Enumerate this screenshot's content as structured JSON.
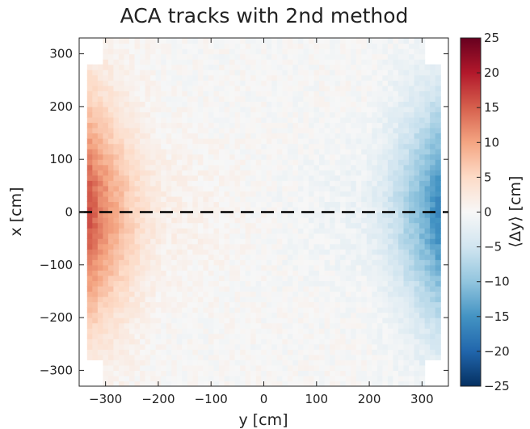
{
  "chart_data": {
    "type": "heatmap",
    "title": "ACA tracks with 2nd method",
    "xlabel": "y [cm]",
    "ylabel": "x [cm]",
    "colorbar_label": "⟨Δy⟩ [cm]",
    "xlim": [
      -350,
      350
    ],
    "ylim": [
      -330,
      330
    ],
    "x_ticks": [
      -300,
      -200,
      -100,
      0,
      100,
      200,
      300
    ],
    "x_tick_labels": [
      "−300",
      "−200",
      "−100",
      "0",
      "100",
      "200",
      "300"
    ],
    "y_ticks": [
      300,
      200,
      100,
      0,
      -100,
      -200,
      -300
    ],
    "y_tick_labels": [
      "300",
      "200",
      "100",
      "0",
      "−100",
      "−200",
      "−300"
    ],
    "color_range": [
      -25,
      25
    ],
    "colorbar_ticks": [
      25,
      20,
      15,
      10,
      5,
      0,
      -5,
      -10,
      -15,
      -20,
      -25
    ],
    "colorbar_tick_labels": [
      "25",
      "20",
      "15",
      "10",
      "5",
      "0",
      "−5",
      "−10",
      "−15",
      "−20",
      "−25"
    ],
    "colormap": "RdBu_r",
    "colors": {
      "positive_max": "#67001f",
      "zero": "#f7f7f7",
      "negative_min": "#053061"
    },
    "reference_line": {
      "style": "dashed",
      "color": "#000000",
      "y_value": 0
    },
    "data_extent": {
      "y": [
        -335,
        335
      ],
      "x": [
        -330,
        330
      ]
    },
    "bin_size_cm": 10,
    "grid": false,
    "notes": [
      {
        "y": -325,
        "x": -115,
        "value": 25
      },
      {
        "y": -325,
        "x": -130,
        "value": 22
      },
      {
        "y": -325,
        "x": -155,
        "value": 16
      },
      {
        "y": 295,
        "x": -65,
        "value": -25
      },
      {
        "y": 305,
        "x": -35,
        "value": -18
      },
      {
        "y": 305,
        "x": -75,
        "value": -16
      },
      {
        "y": 315,
        "x": 5,
        "value": -14
      }
    ]
  }
}
